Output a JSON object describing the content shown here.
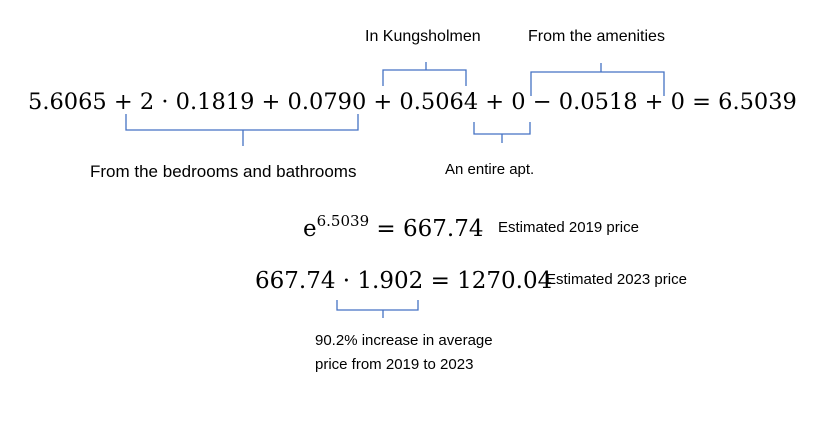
{
  "equation_main": "5.6065 + 2 · 0.1819 + 0.0790 + 0.5064 + 0 − 0.0518 + 0 = 6.5039",
  "equation_exp_base": "e",
  "equation_exp_power": "6.5039",
  "equation_exp_result": " = 667.74",
  "equation_growth": "667.74 · 1.902 = 1270.04",
  "annotations": {
    "kungsholmen": "In Kungsholmen",
    "amenities": "From the amenities",
    "bedrooms_bathrooms": "From the bedrooms and bathrooms",
    "entire_apt": "An entire apt.",
    "est_2019": "Estimated 2019 price",
    "est_2023": "Estimated 2023 price",
    "increase_line1": "90.2% increase in average",
    "increase_line2": "price from 2019 to 2023"
  },
  "colors": {
    "brace": "#4472c4",
    "text": "#000000"
  }
}
